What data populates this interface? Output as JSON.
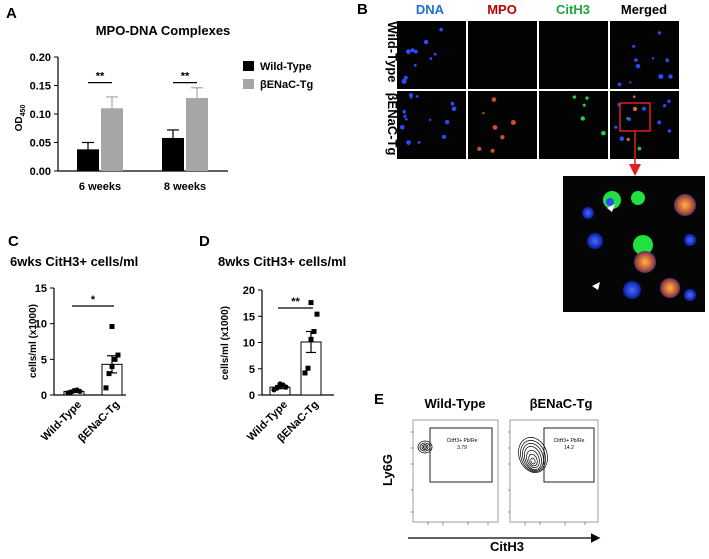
{
  "panels": {
    "A": "A",
    "B": "B",
    "C": "C",
    "D": "D",
    "E": "E"
  },
  "chart_data": [
    {
      "type": "bar",
      "panel": "A",
      "title": "MPO-DNA Complexes",
      "ylabel_main": "OD",
      "ylabel_sub": "450",
      "categories": [
        "6 weeks",
        "8 weeks"
      ],
      "series": [
        {
          "name": "Wild-Type",
          "color": "#000000",
          "values": [
            0.038,
            0.058
          ],
          "errors": [
            0.012,
            0.014
          ]
        },
        {
          "name": "βENaC-Tg",
          "color": "#a6a6a6",
          "values": [
            0.11,
            0.128
          ],
          "errors": [
            0.02,
            0.018
          ]
        }
      ],
      "ylim": [
        0,
        0.2
      ],
      "yticks": [
        "0.00",
        "0.05",
        "0.10",
        "0.15",
        "0.20"
      ],
      "significance": [
        "**",
        "**"
      ],
      "legend": "right"
    },
    {
      "type": "bar",
      "panel": "C",
      "title": "6wks CitH3+ cells/ml",
      "ylabel": "cells/ml (x1000)",
      "categories": [
        "Wild-Type",
        "βENaC-Tg"
      ],
      "values": [
        0.5,
        4.3
      ],
      "errors": [
        0.15,
        1.2
      ],
      "points": [
        [
          0.3,
          0.4,
          0.6,
          0.7,
          0.5,
          0.6
        ],
        [
          1.0,
          3.0,
          4.0,
          5.0,
          5.6,
          9.6
        ]
      ],
      "ylim": [
        0,
        15
      ],
      "yticks": [
        "0",
        "5",
        "10",
        "15"
      ],
      "significance": "*"
    },
    {
      "type": "bar",
      "panel": "D",
      "title": "8wks CitH3+ cells/ml",
      "ylabel": "cells/ml (x1000)",
      "categories": [
        "Wild-Type",
        "βENaC-Tg"
      ],
      "values": [
        1.5,
        10.1
      ],
      "errors": [
        0.3,
        2.0
      ],
      "points": [
        [
          1.0,
          1.3,
          1.7,
          1.9,
          1.5,
          2.1
        ],
        [
          4.2,
          5.1,
          10.6,
          12.1,
          15.4,
          17.6
        ]
      ],
      "ylim": [
        0,
        20
      ],
      "yticks": [
        "0",
        "5",
        "10",
        "15",
        "20"
      ],
      "significance": "**"
    }
  ],
  "microscopy": {
    "columns": [
      {
        "label": "DNA",
        "color": "#1f6fd6"
      },
      {
        "label": "MPO",
        "color": "#c00000"
      },
      {
        "label": "CitH3",
        "color": "#1fa53a"
      },
      {
        "label": "Merged",
        "color": "#000000"
      }
    ],
    "rows": [
      "Wild-Type",
      "βENaC-Tg"
    ]
  },
  "flow": {
    "titles": [
      "Wild-Type",
      "βENaC-Tg"
    ],
    "xlabel": "CitH3",
    "ylabel": "Ly6G",
    "gate_label": "CitH3+ Pb/Re",
    "gate_values": [
      "3.79",
      "14.2"
    ]
  }
}
